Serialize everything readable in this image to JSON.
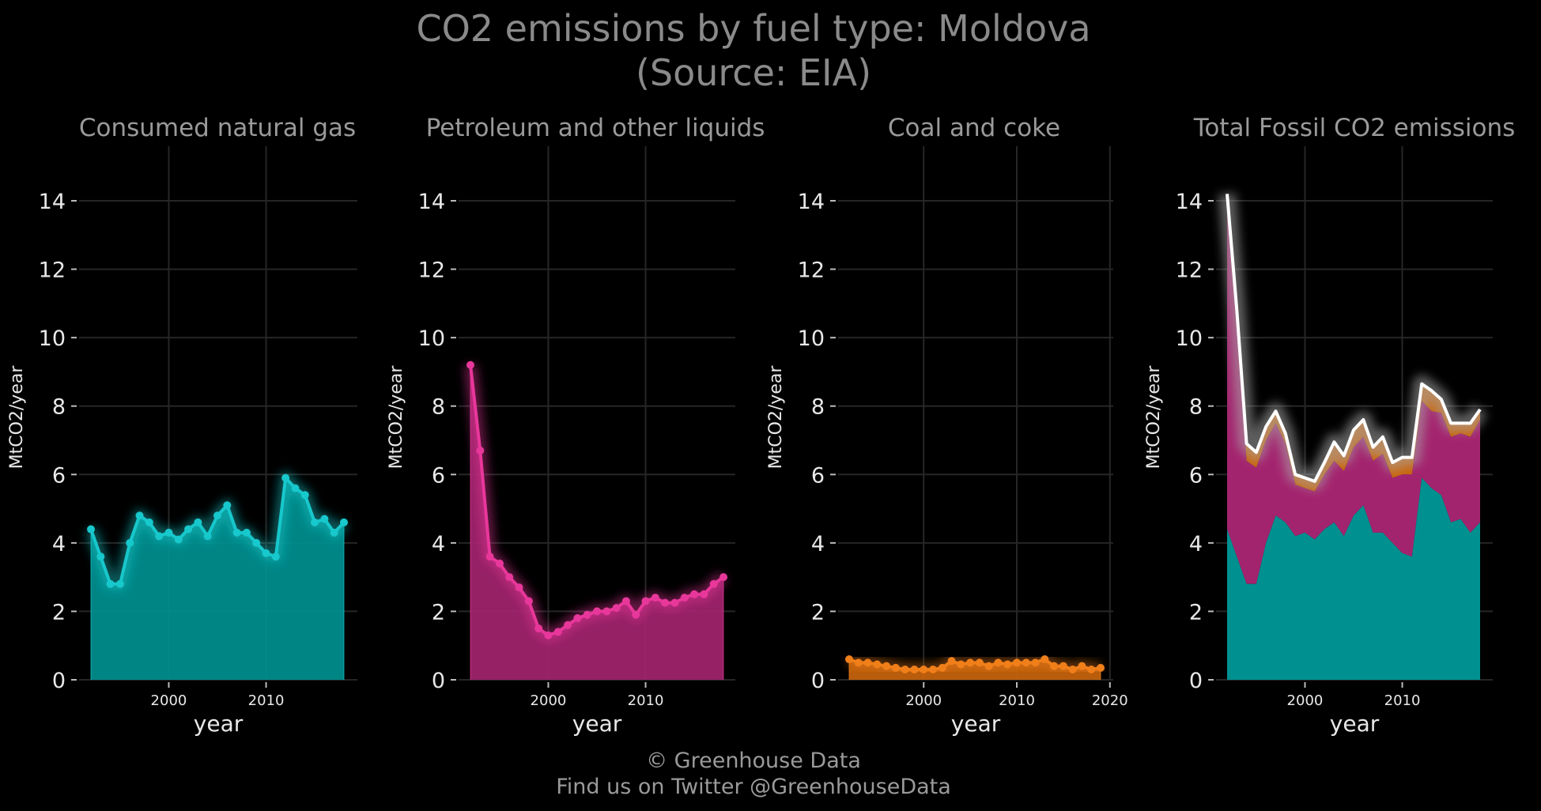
{
  "title_line1": "CO2 emissions by fuel type: Moldova",
  "title_line2": "(Source: EIA)",
  "credit_line1": "© Greenhouse Data",
  "credit_line2": "Find us on Twitter @GreenhouseData",
  "colors": {
    "gas": "#17c8cc",
    "gas_fill": "#009090",
    "petroleum": "#e8379a",
    "petroleum_fill": "#a3246e",
    "coal": "#f07f1a",
    "coal_fill": "#c9640c",
    "total": "#ffffff",
    "grid": "#262626"
  },
  "chart_data": [
    {
      "type": "area",
      "title": "Consumed natural gas",
      "xlabel": "year",
      "ylabel": "MtCO2/year",
      "ylim": [
        0,
        15.5
      ],
      "yticks": [
        0,
        2,
        4,
        6,
        8,
        10,
        12,
        14
      ],
      "xticks": [
        2000,
        2010
      ],
      "grid": true,
      "x": [
        1992,
        1993,
        1994,
        1995,
        1996,
        1997,
        1998,
        1999,
        2000,
        2001,
        2002,
        2003,
        2004,
        2005,
        2006,
        2007,
        2008,
        2009,
        2010,
        2011,
        2012,
        2013,
        2014,
        2015,
        2016,
        2017,
        2018
      ],
      "values": [
        4.4,
        3.6,
        2.8,
        2.8,
        4.0,
        4.8,
        4.6,
        4.2,
        4.3,
        4.1,
        4.4,
        4.6,
        4.2,
        4.8,
        5.1,
        4.3,
        4.3,
        4.0,
        3.7,
        3.6,
        5.9,
        5.6,
        5.4,
        4.6,
        4.7,
        4.3,
        4.6
      ]
    },
    {
      "type": "area",
      "title": "Petroleum and other liquids",
      "xlabel": "year",
      "ylabel": "MtCO2/year",
      "ylim": [
        0,
        15.5
      ],
      "yticks": [
        0,
        2,
        4,
        6,
        8,
        10,
        12,
        14
      ],
      "xticks": [
        2000,
        2010
      ],
      "grid": true,
      "x": [
        1992,
        1993,
        1994,
        1995,
        1996,
        1997,
        1998,
        1999,
        2000,
        2001,
        2002,
        2003,
        2004,
        2005,
        2006,
        2007,
        2008,
        2009,
        2010,
        2011,
        2012,
        2013,
        2014,
        2015,
        2016,
        2017,
        2018
      ],
      "values": [
        9.2,
        6.7,
        3.6,
        3.4,
        3.0,
        2.7,
        2.3,
        1.5,
        1.3,
        1.4,
        1.6,
        1.8,
        1.9,
        2.0,
        2.0,
        2.1,
        2.3,
        1.9,
        2.3,
        2.4,
        2.25,
        2.25,
        2.4,
        2.5,
        2.5,
        2.8,
        3.0
      ]
    },
    {
      "type": "area",
      "title": "Coal and coke",
      "xlabel": "year",
      "ylabel": "MtCO2/year",
      "ylim": [
        0,
        15.5
      ],
      "yticks": [
        0,
        2,
        4,
        6,
        8,
        10,
        12,
        14
      ],
      "xticks": [
        2000,
        2010,
        2020
      ],
      "grid": true,
      "x": [
        1992,
        1993,
        1994,
        1995,
        1996,
        1997,
        1998,
        1999,
        2000,
        2001,
        2002,
        2003,
        2004,
        2005,
        2006,
        2007,
        2008,
        2009,
        2010,
        2011,
        2012,
        2013,
        2014,
        2015,
        2016,
        2017,
        2018,
        2019
      ],
      "values": [
        0.6,
        0.5,
        0.5,
        0.45,
        0.4,
        0.35,
        0.3,
        0.3,
        0.3,
        0.3,
        0.35,
        0.55,
        0.45,
        0.5,
        0.5,
        0.4,
        0.5,
        0.45,
        0.5,
        0.5,
        0.5,
        0.6,
        0.4,
        0.4,
        0.3,
        0.4,
        0.3,
        0.35
      ]
    },
    {
      "type": "area",
      "title": "Total Fossil CO2 emissions",
      "xlabel": "year",
      "ylabel": "MtCO2/year",
      "ylim": [
        0,
        15.5
      ],
      "yticks": [
        0,
        2,
        4,
        6,
        8,
        10,
        12,
        14
      ],
      "xticks": [
        2000,
        2010
      ],
      "grid": true,
      "stacked": true,
      "x": [
        1992,
        1993,
        1994,
        1995,
        1996,
        1997,
        1998,
        1999,
        2000,
        2001,
        2002,
        2003,
        2004,
        2005,
        2006,
        2007,
        2008,
        2009,
        2010,
        2011,
        2012,
        2013,
        2014,
        2015,
        2016,
        2017,
        2018
      ],
      "series": [
        {
          "name": "Consumed natural gas",
          "values": [
            4.4,
            3.6,
            2.8,
            2.8,
            4.0,
            4.8,
            4.6,
            4.2,
            4.3,
            4.1,
            4.4,
            4.6,
            4.2,
            4.8,
            5.1,
            4.3,
            4.3,
            4.0,
            3.7,
            3.6,
            5.9,
            5.6,
            5.4,
            4.6,
            4.7,
            4.3,
            4.6
          ]
        },
        {
          "name": "Petroleum and other liquids",
          "values": [
            9.2,
            6.7,
            3.6,
            3.4,
            3.0,
            2.7,
            2.3,
            1.5,
            1.3,
            1.4,
            1.6,
            1.8,
            1.9,
            2.0,
            2.0,
            2.1,
            2.3,
            1.9,
            2.3,
            2.4,
            2.25,
            2.25,
            2.4,
            2.5,
            2.5,
            2.8,
            3.0
          ]
        },
        {
          "name": "Coal and coke",
          "values": [
            0.6,
            0.5,
            0.5,
            0.45,
            0.4,
            0.35,
            0.3,
            0.3,
            0.3,
            0.3,
            0.35,
            0.55,
            0.45,
            0.5,
            0.5,
            0.4,
            0.5,
            0.45,
            0.5,
            0.5,
            0.5,
            0.6,
            0.4,
            0.4,
            0.3,
            0.4,
            0.3
          ]
        }
      ]
    }
  ]
}
